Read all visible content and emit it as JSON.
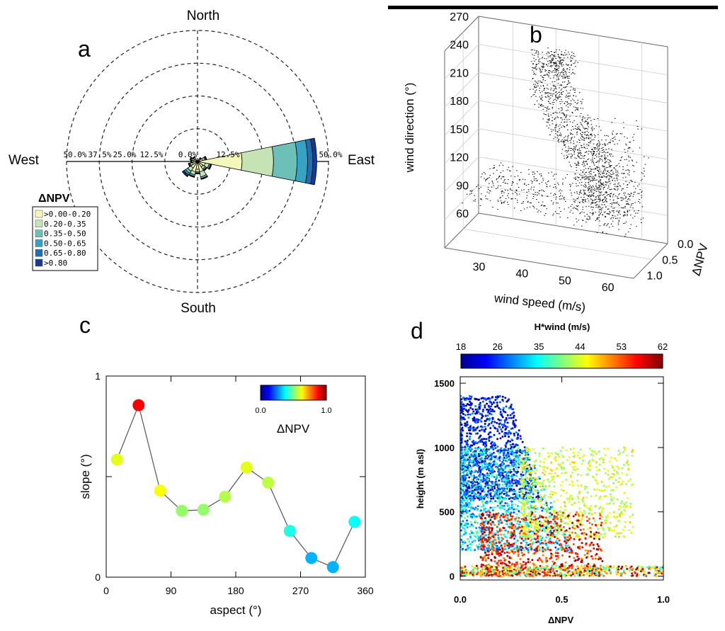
{
  "panel_labels": {
    "a": "a",
    "b": "b",
    "c": "c",
    "d": "d"
  },
  "chart_data": [
    {
      "id": "a",
      "type": "polar-bar",
      "title": "",
      "directions": {
        "north": "North",
        "south": "South",
        "east": "East",
        "west": "West"
      },
      "radial_tick_labels_west": [
        "50.0%",
        "37.5%",
        "25.0%",
        "12.5%",
        "0.0%"
      ],
      "radial_tick_labels_east": [
        "12.5%",
        "50.0%"
      ],
      "rlim": [
        0,
        50
      ],
      "legend_title": "ΔNPV",
      "legend": [
        {
          "label": ">0.00-0.20",
          "color": "#f3f7b9"
        },
        {
          "label": "0.20-0.35",
          "color": "#c5e3b4"
        },
        {
          "label": "0.35-0.50",
          "color": "#6cc0b8"
        },
        {
          "label": "0.50-0.65",
          "color": "#37a2c4"
        },
        {
          "label": "0.65-0.80",
          "color": "#1f6fb0"
        },
        {
          "label": ">0.80",
          "color": "#1b3a8c"
        }
      ],
      "sectors": [
        {
          "direction_deg": 90,
          "width_deg": 22.5,
          "cumulative_percent": [
            17,
            29,
            38,
            42,
            44,
            45.5
          ]
        },
        {
          "direction_deg": 112.5,
          "width_deg": 22.5,
          "cumulative_percent": [
            3,
            4.5,
            5,
            5.3,
            5.4,
            5.5
          ]
        },
        {
          "direction_deg": 135,
          "width_deg": 22.5,
          "cumulative_percent": [
            2.5,
            3.5,
            4,
            4.2,
            4.3,
            4.4
          ]
        },
        {
          "direction_deg": 157.5,
          "width_deg": 22.5,
          "cumulative_percent": [
            4,
            6,
            6.6,
            6.8,
            6.9,
            7
          ]
        },
        {
          "direction_deg": 180,
          "width_deg": 22.5,
          "cumulative_percent": [
            3,
            4,
            4.4,
            4.6,
            4.7,
            4.8
          ]
        },
        {
          "direction_deg": 202.5,
          "width_deg": 22.5,
          "cumulative_percent": [
            4,
            5.2,
            5.8,
            6,
            6.1,
            6.2
          ]
        },
        {
          "direction_deg": 225,
          "width_deg": 22.5,
          "cumulative_percent": [
            3,
            4.5,
            5.5,
            6.2,
            6.6,
            7
          ]
        },
        {
          "direction_deg": 247.5,
          "width_deg": 22.5,
          "cumulative_percent": [
            2,
            2.8,
            3.2,
            3.4,
            3.5,
            3.6
          ]
        },
        {
          "direction_deg": 270,
          "width_deg": 22.5,
          "cumulative_percent": [
            1.5,
            2,
            2.3,
            2.4,
            2.5,
            2.6
          ]
        },
        {
          "direction_deg": 292.5,
          "width_deg": 22.5,
          "cumulative_percent": [
            1.5,
            2.2,
            2.6,
            2.8,
            2.9,
            3
          ]
        },
        {
          "direction_deg": 315,
          "width_deg": 22.5,
          "cumulative_percent": [
            1.2,
            1.8,
            2,
            2.1,
            2.2,
            2.2
          ]
        },
        {
          "direction_deg": 45,
          "width_deg": 22.5,
          "cumulative_percent": [
            1,
            1.4,
            1.6,
            1.7,
            1.8,
            1.8
          ]
        },
        {
          "direction_deg": 67.5,
          "width_deg": 22.5,
          "cumulative_percent": [
            2,
            2.8,
            3.2,
            3.4,
            3.5,
            3.6
          ]
        }
      ]
    },
    {
      "id": "b",
      "type": "scatter3d",
      "xlabel": "wind speed (m/s)",
      "ylabel": "wind direction (°)",
      "zlabel": "ΔNPV",
      "xticks": [
        "30",
        "40",
        "50",
        "60"
      ],
      "yticks": [
        "60",
        "90",
        "120",
        "150",
        "180",
        "210",
        "240",
        "270"
      ],
      "zticks": [
        "0.0",
        "0.5",
        "1.0"
      ],
      "xlim": [
        22,
        66
      ],
      "ylim": [
        60,
        270
      ],
      "zlim": [
        0,
        1.1
      ],
      "clusters": [
        {
          "ws": [
            25,
            62
          ],
          "dir": [
            105,
            120
          ],
          "npv": [
            0,
            1
          ],
          "n": 520
        },
        {
          "ws": [
            35,
            45
          ],
          "dir": [
            225,
            250
          ],
          "npv": [
            0,
            0.2
          ],
          "n": 200
        },
        {
          "ws": [
            40,
            55
          ],
          "dir": [
            120,
            230
          ],
          "npv": [
            0,
            0.9
          ],
          "n": 900
        },
        {
          "ws": [
            50,
            64
          ],
          "dir": [
            95,
            200
          ],
          "npv": [
            0.3,
            1
          ],
          "n": 420
        }
      ]
    },
    {
      "id": "c",
      "type": "line",
      "xlabel": "aspect (°)",
      "ylabel": "slope (°)",
      "xticks": [
        "0",
        "90",
        "180",
        "270",
        "360"
      ],
      "yticks": [
        "0",
        "1"
      ],
      "xlim": [
        0,
        360
      ],
      "ylim": [
        0,
        1
      ],
      "colorbar_label": "ΔNPV",
      "colorbar_ticks": [
        "0.0",
        "1.0"
      ],
      "x": [
        15,
        45,
        75,
        105,
        135,
        165,
        195,
        225,
        255,
        285,
        315,
        345
      ],
      "y": [
        0.585,
        0.855,
        0.43,
        0.33,
        0.335,
        0.4,
        0.545,
        0.47,
        0.23,
        0.095,
        0.05,
        0.275
      ],
      "color_values": [
        0.6,
        0.88,
        0.62,
        0.52,
        0.52,
        0.55,
        0.6,
        0.56,
        0.4,
        0.3,
        0.3,
        0.38
      ]
    },
    {
      "id": "d",
      "type": "scatter",
      "xlabel": "ΔNPV",
      "ylabel": "height (m asl)",
      "colorbar_title": "H*wind (m/s)",
      "colorbar_ticks": [
        "18",
        "26",
        "35",
        "44",
        "53",
        "62"
      ],
      "xticks": [
        "0.0",
        "0.5",
        "1.0"
      ],
      "yticks": [
        "0",
        "500",
        "1000",
        "1500"
      ],
      "xlim": [
        0,
        1
      ],
      "ylim": [
        -30,
        1550
      ],
      "clusters": [
        {
          "npv": [
            0,
            0.4
          ],
          "height": [
            600,
            1400
          ],
          "hwind": [
            18,
            30
          ],
          "n": 1100
        },
        {
          "npv": [
            0,
            0.55
          ],
          "height": [
            200,
            1000
          ],
          "hwind": [
            26,
            40
          ],
          "n": 1100
        },
        {
          "npv": [
            0.3,
            0.85
          ],
          "height": [
            300,
            1000
          ],
          "hwind": [
            40,
            48
          ],
          "n": 700
        },
        {
          "npv": [
            0.1,
            0.7
          ],
          "height": [
            0,
            500
          ],
          "hwind": [
            50,
            62
          ],
          "n": 700
        },
        {
          "npv": [
            0,
            1
          ],
          "height": [
            0,
            80
          ],
          "hwind": [
            35,
            62
          ],
          "n": 500
        }
      ]
    }
  ]
}
